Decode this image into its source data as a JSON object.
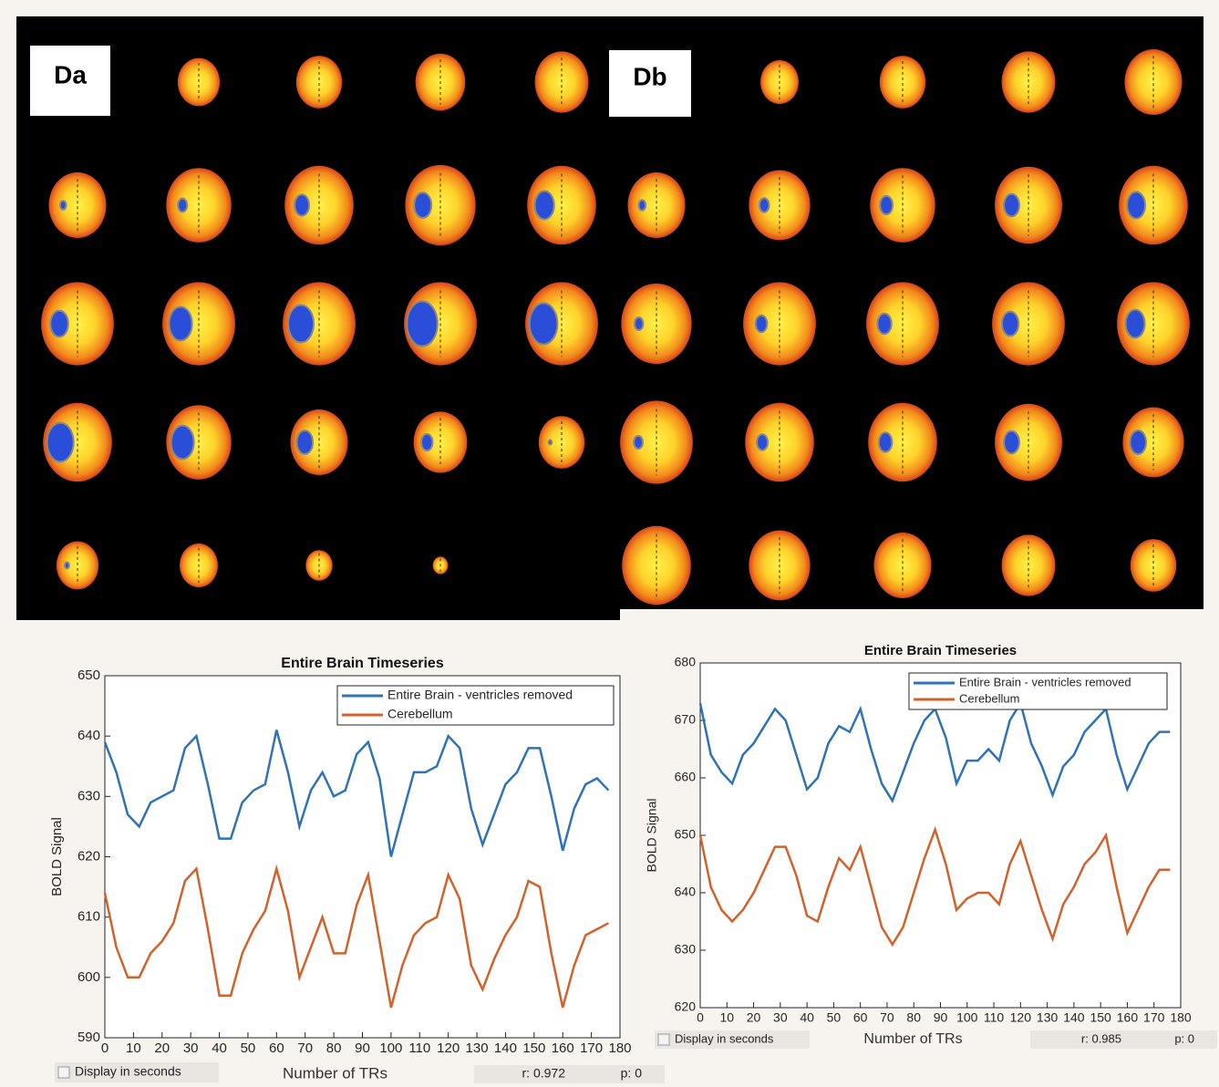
{
  "panels": [
    "Da",
    "Db"
  ],
  "chart_data": [
    {
      "type": "line",
      "title": "Entire Brain Timeseries",
      "xlabel": "Number of TRs",
      "ylabel": "BOLD Signal",
      "x": [
        0,
        4,
        8,
        12,
        16,
        20,
        24,
        28,
        32,
        36,
        40,
        44,
        48,
        52,
        56,
        60,
        64,
        68,
        72,
        76,
        80,
        84,
        88,
        92,
        96,
        100,
        104,
        108,
        112,
        116,
        120,
        124,
        128,
        132,
        136,
        140,
        144,
        148,
        152,
        156,
        160,
        164,
        168,
        172,
        176
      ],
      "series": [
        {
          "name": "Entire Brain - ventricles removed",
          "color": "#2e72b8",
          "values": [
            639,
            634,
            627,
            625,
            629,
            630,
            631,
            638,
            640,
            632,
            623,
            623,
            629,
            631,
            632,
            641,
            634,
            625,
            631,
            634,
            630,
            631,
            637,
            639,
            633,
            620,
            627,
            634,
            634,
            635,
            640,
            638,
            628,
            622,
            627,
            632,
            634,
            638,
            638,
            630,
            621,
            628,
            632,
            633,
            631
          ]
        },
        {
          "name": "Cerebellum",
          "color": "#d2622a",
          "values": [
            614,
            605,
            600,
            600,
            604,
            606,
            609,
            616,
            618,
            608,
            597,
            597,
            604,
            608,
            611,
            618,
            611,
            600,
            605,
            610,
            604,
            604,
            612,
            617,
            606,
            595,
            602,
            607,
            609,
            610,
            617,
            613,
            602,
            598,
            603,
            607,
            610,
            616,
            615,
            604,
            595,
            602,
            607,
            608,
            609
          ]
        }
      ],
      "xlim": [
        0,
        180
      ],
      "xticks": [
        0,
        10,
        20,
        30,
        40,
        50,
        60,
        70,
        80,
        90,
        100,
        110,
        120,
        130,
        140,
        150,
        160,
        170,
        180
      ],
      "ylim": [
        590,
        650
      ],
      "yticks": [
        590,
        600,
        610,
        620,
        630,
        640,
        650
      ],
      "legend": "upper right",
      "checkbox_label": "Display in seconds",
      "r_label": "r: 0.972",
      "p_label": "p: 0"
    },
    {
      "type": "line",
      "title": "Entire Brain Timeseries",
      "xlabel": "Number of TRs",
      "ylabel": "BOLD Signal",
      "x": [
        0,
        4,
        8,
        12,
        16,
        20,
        24,
        28,
        32,
        36,
        40,
        44,
        48,
        52,
        56,
        60,
        64,
        68,
        72,
        76,
        80,
        84,
        88,
        92,
        96,
        100,
        104,
        108,
        112,
        116,
        120,
        124,
        128,
        132,
        136,
        140,
        144,
        148,
        152,
        156,
        160,
        164,
        168,
        172,
        176
      ],
      "series": [
        {
          "name": "Entire Brain - ventricles removed",
          "color": "#2e72b8",
          "values": [
            673,
            664,
            661,
            659,
            664,
            666,
            669,
            672,
            670,
            664,
            658,
            660,
            666,
            669,
            668,
            672,
            665,
            659,
            656,
            661,
            666,
            670,
            672,
            667,
            659,
            663,
            663,
            665,
            663,
            670,
            673,
            666,
            662,
            657,
            662,
            664,
            668,
            670,
            672,
            664,
            658,
            662,
            666,
            668,
            668
          ]
        },
        {
          "name": "Cerebellum",
          "color": "#d2622a",
          "values": [
            650,
            641,
            637,
            635,
            637,
            640,
            644,
            648,
            648,
            643,
            636,
            635,
            641,
            646,
            644,
            648,
            641,
            634,
            631,
            634,
            640,
            646,
            651,
            645,
            637,
            639,
            640,
            640,
            638,
            645,
            649,
            643,
            637,
            632,
            638,
            641,
            645,
            647,
            650,
            641,
            633,
            637,
            641,
            644,
            644
          ]
        }
      ],
      "xlim": [
        0,
        180
      ],
      "xticks": [
        0,
        10,
        20,
        30,
        40,
        50,
        60,
        70,
        80,
        90,
        100,
        110,
        120,
        130,
        140,
        150,
        160,
        170,
        180
      ],
      "ylim": [
        620,
        680
      ],
      "yticks": [
        620,
        630,
        640,
        650,
        660,
        670,
        680
      ],
      "legend": "upper right",
      "checkbox_label": "Display in seconds",
      "r_label": "r: 0.985",
      "p_label": "p: 0"
    }
  ]
}
